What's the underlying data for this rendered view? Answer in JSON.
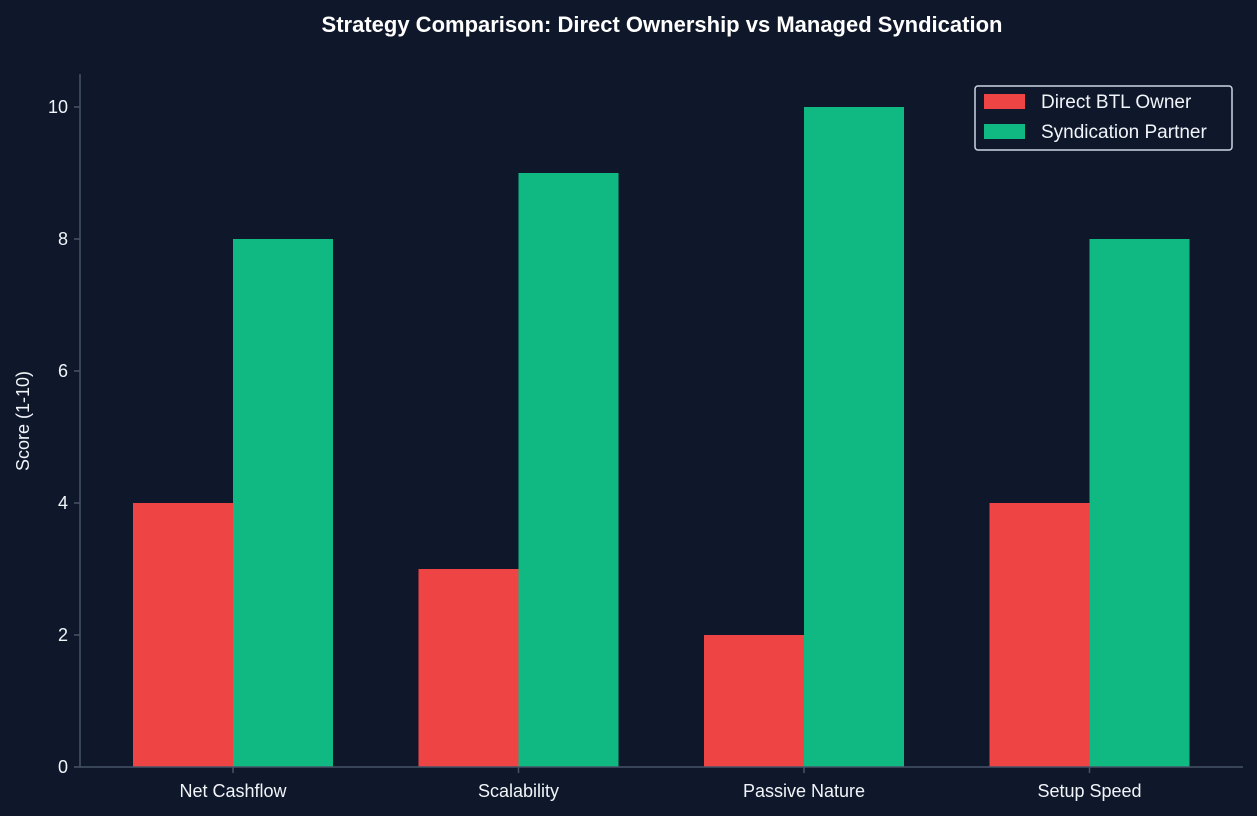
{
  "chart_data": {
    "type": "bar",
    "title": "Strategy Comparison: Direct Ownership vs Managed Syndication",
    "xlabel": "",
    "ylabel": "Score (1-10)",
    "categories": [
      "Net Cashflow",
      "Scalability",
      "Passive Nature",
      "Setup Speed"
    ],
    "series": [
      {
        "name": "Direct BTL Owner",
        "color": "#ef4444",
        "values": [
          4,
          3,
          2,
          4
        ]
      },
      {
        "name": "Syndication Partner",
        "color": "#10b981",
        "values": [
          8,
          9,
          10,
          8
        ]
      }
    ],
    "ylim": [
      0,
      10.5
    ],
    "yticks": [
      0,
      2,
      4,
      6,
      8,
      10
    ],
    "grid": false,
    "legend_position": "top-right"
  },
  "theme": {
    "background": "#0f172a",
    "axis_color": "#475569",
    "text_color": "#f1f5f9"
  }
}
